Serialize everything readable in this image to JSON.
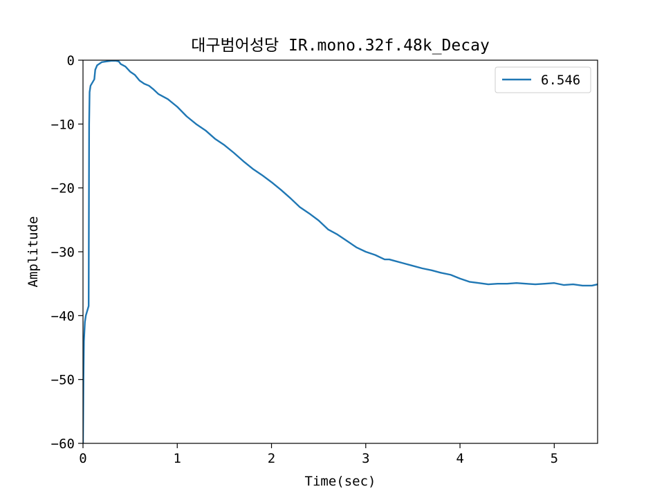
{
  "chart_data": {
    "type": "line",
    "title": "대구범어성당 IR.mono.32f.48k_Decay",
    "xlabel": "Time(sec)",
    "ylabel": "Amplitude",
    "xlim": [
      0,
      5.46
    ],
    "ylim": [
      -60,
      0
    ],
    "xticks": [
      0,
      1,
      2,
      3,
      4,
      5
    ],
    "yticks": [
      0,
      -10,
      -20,
      -30,
      -40,
      -50,
      -60
    ],
    "grid": false,
    "legend": "top-right",
    "series": [
      {
        "name": "6.546",
        "color": "#1f77b4",
        "x": [
          0.0,
          0.005,
          0.01,
          0.02,
          0.03,
          0.05,
          0.06,
          0.065,
          0.07,
          0.08,
          0.1,
          0.12,
          0.13,
          0.15,
          0.18,
          0.2,
          0.25,
          0.3,
          0.35,
          0.38,
          0.4,
          0.45,
          0.5,
          0.55,
          0.6,
          0.65,
          0.7,
          0.75,
          0.8,
          0.9,
          1.0,
          1.1,
          1.2,
          1.3,
          1.4,
          1.5,
          1.6,
          1.7,
          1.8,
          1.9,
          2.0,
          2.1,
          2.2,
          2.3,
          2.4,
          2.5,
          2.6,
          2.7,
          2.8,
          2.9,
          3.0,
          3.1,
          3.2,
          3.25,
          3.3,
          3.4,
          3.5,
          3.6,
          3.7,
          3.8,
          3.9,
          4.0,
          4.1,
          4.2,
          4.3,
          4.4,
          4.5,
          4.6,
          4.7,
          4.8,
          4.9,
          5.0,
          5.1,
          5.2,
          5.3,
          5.4,
          5.46
        ],
        "y": [
          -60,
          -50,
          -44,
          -41,
          -40,
          -39,
          -38.5,
          -10,
          -5,
          -4,
          -3.5,
          -3,
          -1.5,
          -0.8,
          -0.5,
          -0.3,
          -0.2,
          -0.1,
          -0.1,
          -0.2,
          -0.6,
          -1.0,
          -1.8,
          -2.3,
          -3.2,
          -3.7,
          -4.0,
          -4.6,
          -5.3,
          -6.1,
          -7.3,
          -8.8,
          -10.0,
          -11.0,
          -12.3,
          -13.3,
          -14.5,
          -15.8,
          -17.0,
          -18.0,
          -19.1,
          -20.3,
          -21.6,
          -23.0,
          -24.0,
          -25.1,
          -26.5,
          -27.3,
          -28.3,
          -29.3,
          -30.0,
          -30.5,
          -31.2,
          -31.2,
          -31.4,
          -31.8,
          -32.2,
          -32.6,
          -32.9,
          -33.3,
          -33.6,
          -34.2,
          -34.7,
          -34.9,
          -35.1,
          -35.0,
          -35.0,
          -34.9,
          -35.0,
          -35.1,
          -35.0,
          -34.9,
          -35.2,
          -35.1,
          -35.3,
          -35.3,
          -35.1
        ]
      }
    ]
  }
}
